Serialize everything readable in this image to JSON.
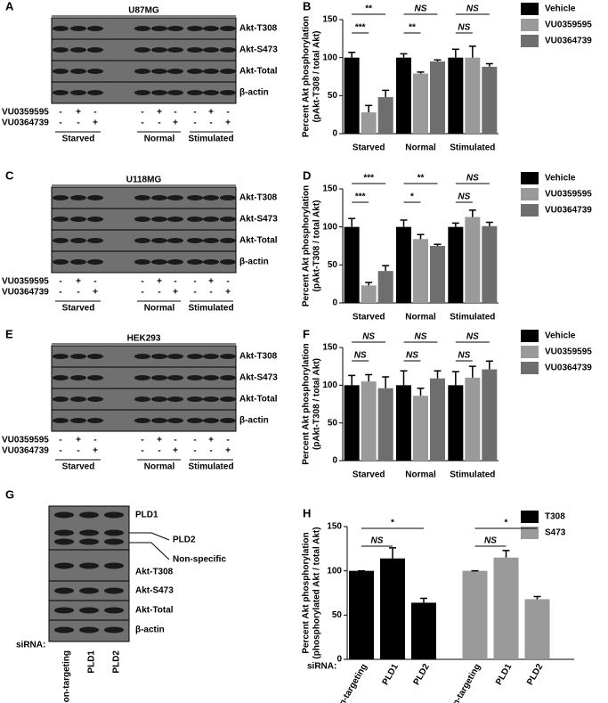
{
  "blots": [
    {
      "label": "A",
      "title": "U87MG",
      "rows": [
        "Akt-T308",
        "Akt-S473",
        "Akt-Total",
        "β-actin"
      ],
      "treatments": [
        "VU0359595",
        "VU0364739"
      ],
      "signs": [
        [
          "-",
          "+",
          "-"
        ],
        [
          "-",
          "-",
          "+"
        ]
      ],
      "groups": [
        "Starved",
        "Normal",
        "Stimulated"
      ]
    },
    {
      "label": "C",
      "title": "U118MG",
      "rows": [
        "Akt-T308",
        "Akt-S473",
        "Akt-Total",
        "β-actin"
      ],
      "treatments": [
        "VU0359595",
        "VU0364739"
      ],
      "signs": [
        [
          "-",
          "+",
          "-"
        ],
        [
          "-",
          "-",
          "+"
        ]
      ],
      "groups": [
        "Starved",
        "Normal",
        "Stimulated"
      ]
    },
    {
      "label": "E",
      "title": "HEK293",
      "rows": [
        "Akt-T308",
        "Akt-S473",
        "Akt-Total",
        "β-actin"
      ],
      "treatments": [
        "VU0359595",
        "VU0364739"
      ],
      "signs": [
        [
          "-",
          "+",
          "-"
        ],
        [
          "-",
          "-",
          "+"
        ]
      ],
      "groups": [
        "Starved",
        "Normal",
        "Stimulated"
      ]
    }
  ],
  "blot_g": {
    "label": "G",
    "rows": [
      "PLD1",
      "PLD2",
      "Non-specific",
      "Akt-T308",
      "Akt-S473",
      "Akt-Total",
      "β-actin"
    ],
    "sirna_label": "siRNA:",
    "lanes": [
      "Non-targeting",
      "PLD1",
      "PLD2"
    ]
  },
  "chart_data": [
    {
      "type": "bar",
      "label": "B",
      "y_label": [
        "Percent Akt phosphorylation",
        "(pAkt-T308 / total Akt)"
      ],
      "categories": [
        "Starved",
        "Normal",
        "Stimulated"
      ],
      "series": [
        {
          "name": "Vehicle",
          "color": "#000000",
          "values": [
            100,
            100,
            100
          ],
          "errors": [
            7,
            5,
            11
          ]
        },
        {
          "name": "VU0359595",
          "color": "#9a9a9a",
          "values": [
            28,
            79,
            100
          ],
          "errors": [
            9,
            2,
            15
          ]
        },
        {
          "name": "VU0364739",
          "color": "#6e6e6e",
          "values": [
            48,
            95,
            88
          ],
          "errors": [
            9,
            2,
            4
          ]
        }
      ],
      "significance": [
        [
          "**",
          "***"
        ],
        [
          "NS",
          "**"
        ],
        [
          "NS",
          "NS"
        ]
      ],
      "ylim": [
        0,
        150
      ],
      "yticks": [
        0,
        50,
        100,
        150
      ]
    },
    {
      "type": "bar",
      "label": "D",
      "y_label": [
        "Percent Akt phosphorylation",
        "(pAkt-T308 / total Akt)"
      ],
      "categories": [
        "Starved",
        "Normal",
        "Stimulated"
      ],
      "series": [
        {
          "name": "Vehicle",
          "color": "#000000",
          "values": [
            100,
            100,
            100
          ],
          "errors": [
            11,
            9,
            5
          ]
        },
        {
          "name": "VU0359595",
          "color": "#9a9a9a",
          "values": [
            23,
            84,
            113
          ],
          "errors": [
            4,
            6,
            9
          ]
        },
        {
          "name": "VU0364739",
          "color": "#6e6e6e",
          "values": [
            42,
            75,
            101
          ],
          "errors": [
            7,
            2,
            5
          ]
        }
      ],
      "significance": [
        [
          "***",
          "***"
        ],
        [
          "**",
          "*"
        ],
        [
          "NS",
          "NS"
        ]
      ],
      "ylim": [
        0,
        150
      ],
      "yticks": [
        0,
        50,
        100,
        150
      ]
    },
    {
      "type": "bar",
      "label": "F",
      "y_label": [
        "Percent Akt phosphorylation",
        "(pAkt-T308 / total Akt)"
      ],
      "categories": [
        "Starved",
        "Normal",
        "Stimulated"
      ],
      "series": [
        {
          "name": "Vehicle",
          "color": "#000000",
          "values": [
            100,
            100,
            100
          ],
          "errors": [
            13,
            19,
            18
          ]
        },
        {
          "name": "VU0359595",
          "color": "#9a9a9a",
          "values": [
            105,
            86,
            110
          ],
          "errors": [
            9,
            10,
            15
          ]
        },
        {
          "name": "VU0364739",
          "color": "#6e6e6e",
          "values": [
            96,
            109,
            121
          ],
          "errors": [
            15,
            10,
            11
          ]
        }
      ],
      "significance": [
        [
          "NS",
          "NS"
        ],
        [
          "NS",
          "NS"
        ],
        [
          "NS",
          "NS"
        ]
      ],
      "ylim": [
        0,
        150
      ],
      "yticks": [
        0,
        50,
        100,
        150
      ]
    },
    {
      "type": "bar_by_series",
      "label": "H",
      "y_label": [
        "Percent Akt phosphorylation",
        "(phosphorylated Akt / total Akt)"
      ],
      "x_label": "siRNA:",
      "categories": [
        "Non-targeting",
        "PLD1",
        "PLD2"
      ],
      "series": [
        {
          "name": "T308",
          "color": "#000000",
          "values": [
            100,
            114,
            64
          ],
          "errors": [
            0,
            12,
            5
          ]
        },
        {
          "name": "S473",
          "color": "#9a9a9a",
          "values": [
            100,
            115,
            68
          ],
          "errors": [
            0,
            8,
            3
          ]
        }
      ],
      "significance": [
        [
          "*",
          "NS"
        ],
        [
          "*",
          "NS"
        ]
      ],
      "ylim": [
        0,
        150
      ],
      "yticks": [
        0,
        50,
        100,
        150
      ]
    }
  ]
}
